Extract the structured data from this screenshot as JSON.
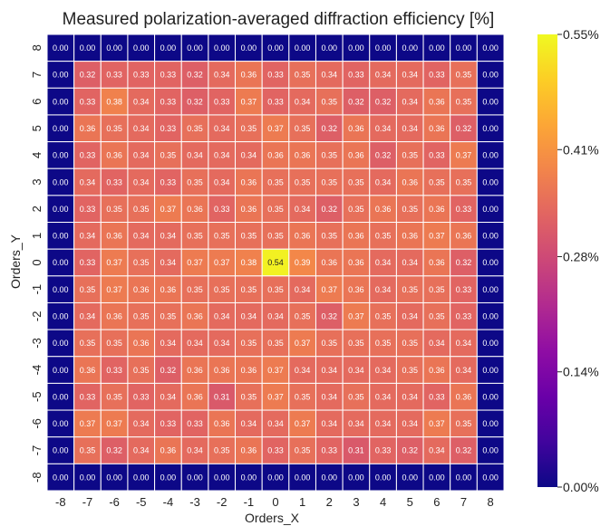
{
  "chart_data": {
    "type": "heatmap",
    "title": "Measured polarization-averaged diffraction efficiency [%]",
    "xlabel": "Orders_X",
    "ylabel": "Orders_Y",
    "x_categories": [
      "-8",
      "-7",
      "-6",
      "-5",
      "-4",
      "-3",
      "-2",
      "-1",
      "0",
      "1",
      "2",
      "3",
      "4",
      "5",
      "6",
      "7",
      "8"
    ],
    "y_categories": [
      "8",
      "7",
      "6",
      "5",
      "4",
      "3",
      "2",
      "1",
      "0",
      "-1",
      "-2",
      "-3",
      "-4",
      "-5",
      "-6",
      "-7",
      "-8"
    ],
    "rows": [
      [
        "0.00",
        "0.00",
        "0.00",
        "0.00",
        "0.00",
        "0.00",
        "0.00",
        "0.00",
        "0.00",
        "0.00",
        "0.00",
        "0.00",
        "0.00",
        "0.00",
        "0.00",
        "0.00",
        "0.00"
      ],
      [
        "0.00",
        "0.32",
        "0.33",
        "0.33",
        "0.33",
        "0.32",
        "0.34",
        "0.36",
        "0.33",
        "0.35",
        "0.34",
        "0.33",
        "0.34",
        "0.34",
        "0.33",
        "0.35",
        "0.00"
      ],
      [
        "0.00",
        "0.33",
        "0.38",
        "0.34",
        "0.33",
        "0.32",
        "0.33",
        "0.37",
        "0.33",
        "0.34",
        "0.35",
        "0.32",
        "0.32",
        "0.34",
        "0.36",
        "0.35",
        "0.00"
      ],
      [
        "0.00",
        "0.36",
        "0.35",
        "0.34",
        "0.33",
        "0.35",
        "0.34",
        "0.35",
        "0.37",
        "0.35",
        "0.32",
        "0.36",
        "0.34",
        "0.34",
        "0.36",
        "0.32",
        "0.00"
      ],
      [
        "0.00",
        "0.33",
        "0.36",
        "0.34",
        "0.35",
        "0.34",
        "0.34",
        "0.34",
        "0.36",
        "0.36",
        "0.35",
        "0.36",
        "0.32",
        "0.35",
        "0.33",
        "0.37",
        "0.00"
      ],
      [
        "0.00",
        "0.34",
        "0.33",
        "0.34",
        "0.33",
        "0.35",
        "0.34",
        "0.36",
        "0.35",
        "0.35",
        "0.35",
        "0.35",
        "0.34",
        "0.36",
        "0.35",
        "0.35",
        "0.00"
      ],
      [
        "0.00",
        "0.33",
        "0.35",
        "0.35",
        "0.37",
        "0.36",
        "0.33",
        "0.36",
        "0.35",
        "0.34",
        "0.32",
        "0.35",
        "0.36",
        "0.35",
        "0.36",
        "0.33",
        "0.00"
      ],
      [
        "0.00",
        "0.34",
        "0.36",
        "0.34",
        "0.34",
        "0.35",
        "0.35",
        "0.35",
        "0.35",
        "0.36",
        "0.35",
        "0.36",
        "0.35",
        "0.36",
        "0.37",
        "0.36",
        "0.00"
      ],
      [
        "0.00",
        "0.33",
        "0.37",
        "0.35",
        "0.34",
        "0.37",
        "0.37",
        "0.38",
        "0.54",
        "0.39",
        "0.36",
        "0.36",
        "0.34",
        "0.34",
        "0.36",
        "0.32",
        "0.00"
      ],
      [
        "0.00",
        "0.35",
        "0.37",
        "0.36",
        "0.36",
        "0.35",
        "0.35",
        "0.35",
        "0.35",
        "0.34",
        "0.37",
        "0.36",
        "0.34",
        "0.35",
        "0.35",
        "0.33",
        "0.00"
      ],
      [
        "0.00",
        "0.34",
        "0.36",
        "0.35",
        "0.35",
        "0.36",
        "0.34",
        "0.34",
        "0.34",
        "0.35",
        "0.32",
        "0.37",
        "0.35",
        "0.34",
        "0.35",
        "0.33",
        "0.00"
      ],
      [
        "0.00",
        "0.35",
        "0.35",
        "0.36",
        "0.34",
        "0.34",
        "0.34",
        "0.35",
        "0.35",
        "0.37",
        "0.35",
        "0.35",
        "0.35",
        "0.35",
        "0.34",
        "0.34",
        "0.00"
      ],
      [
        "0.00",
        "0.36",
        "0.33",
        "0.35",
        "0.32",
        "0.36",
        "0.36",
        "0.36",
        "0.37",
        "0.34",
        "0.34",
        "0.34",
        "0.34",
        "0.35",
        "0.36",
        "0.34",
        "0.00"
      ],
      [
        "0.00",
        "0.33",
        "0.35",
        "0.33",
        "0.34",
        "0.36",
        "0.31",
        "0.35",
        "0.37",
        "0.35",
        "0.34",
        "0.35",
        "0.34",
        "0.34",
        "0.33",
        "0.36",
        "0.00"
      ],
      [
        "0.00",
        "0.37",
        "0.37",
        "0.34",
        "0.33",
        "0.33",
        "0.36",
        "0.34",
        "0.34",
        "0.37",
        "0.34",
        "0.34",
        "0.34",
        "0.34",
        "0.37",
        "0.35",
        "0.00"
      ],
      [
        "0.00",
        "0.35",
        "0.32",
        "0.34",
        "0.36",
        "0.34",
        "0.35",
        "0.36",
        "0.33",
        "0.35",
        "0.33",
        "0.31",
        "0.33",
        "0.32",
        "0.34",
        "0.32",
        "0.00"
      ],
      [
        "0.00",
        "0.00",
        "0.00",
        "0.00",
        "0.00",
        "0.00",
        "0.00",
        "0.00",
        "0.00",
        "0.00",
        "0.00",
        "0.00",
        "0.00",
        "0.00",
        "0.00",
        "0.00",
        "0.00"
      ]
    ],
    "colorbar": {
      "min": 0.0,
      "max": 0.55,
      "ticks": [
        0.0,
        0.14,
        0.28,
        0.41,
        0.55
      ],
      "tick_labels": [
        "0.00%",
        "0.14%",
        "0.28%",
        "0.41%",
        "0.55%"
      ],
      "colormap": "plasma"
    },
    "grid": true
  }
}
